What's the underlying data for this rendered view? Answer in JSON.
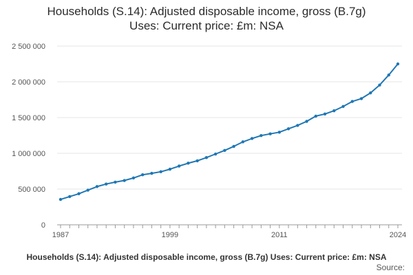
{
  "chart_data": {
    "type": "line",
    "title_lines": [
      "Households (S.14): Adjusted disposable income, gross (B.7g)",
      "Uses: Current price: £m: NSA"
    ],
    "xlabel": "",
    "ylabel": "",
    "x": [
      1987,
      1988,
      1989,
      1990,
      1991,
      1992,
      1993,
      1994,
      1995,
      1996,
      1997,
      1998,
      1999,
      2000,
      2001,
      2002,
      2003,
      2004,
      2005,
      2006,
      2007,
      2008,
      2009,
      2010,
      2011,
      2012,
      2013,
      2014,
      2015,
      2016,
      2017,
      2018,
      2019,
      2020,
      2021,
      2022,
      2023,
      2024
    ],
    "series": [
      {
        "values": [
          355000,
          395000,
          435000,
          485000,
          535000,
          570000,
          597000,
          620000,
          655000,
          700000,
          720000,
          742000,
          778000,
          822000,
          862000,
          895000,
          940000,
          990000,
          1040000,
          1097000,
          1160000,
          1207000,
          1248000,
          1272000,
          1295000,
          1343000,
          1390000,
          1447000,
          1520000,
          1550000,
          1595000,
          1655000,
          1725000,
          1765000,
          1845000,
          1955000,
          2095000,
          2250000
        ]
      }
    ],
    "x_ticks": [
      "1987",
      "1999",
      "2011",
      "2024"
    ],
    "y_ticks": [
      0,
      500000,
      1000000,
      1500000,
      2000000,
      2500000
    ],
    "y_tick_labels": [
      "0",
      "500 000",
      "1 000 000",
      "1 500 000",
      "2 000 000",
      "2 500 000"
    ],
    "ylim": [
      0,
      2500000
    ],
    "xlim": [
      1987,
      2024
    ],
    "grid": "horizontal",
    "line_color": "#1f77b4",
    "grid_color": "#e5e5e5"
  },
  "footer": {
    "title": "Households (S.14): Adjusted disposable income, gross (B.7g) Uses: Current price: £m: NSA",
    "source": "Source:"
  }
}
